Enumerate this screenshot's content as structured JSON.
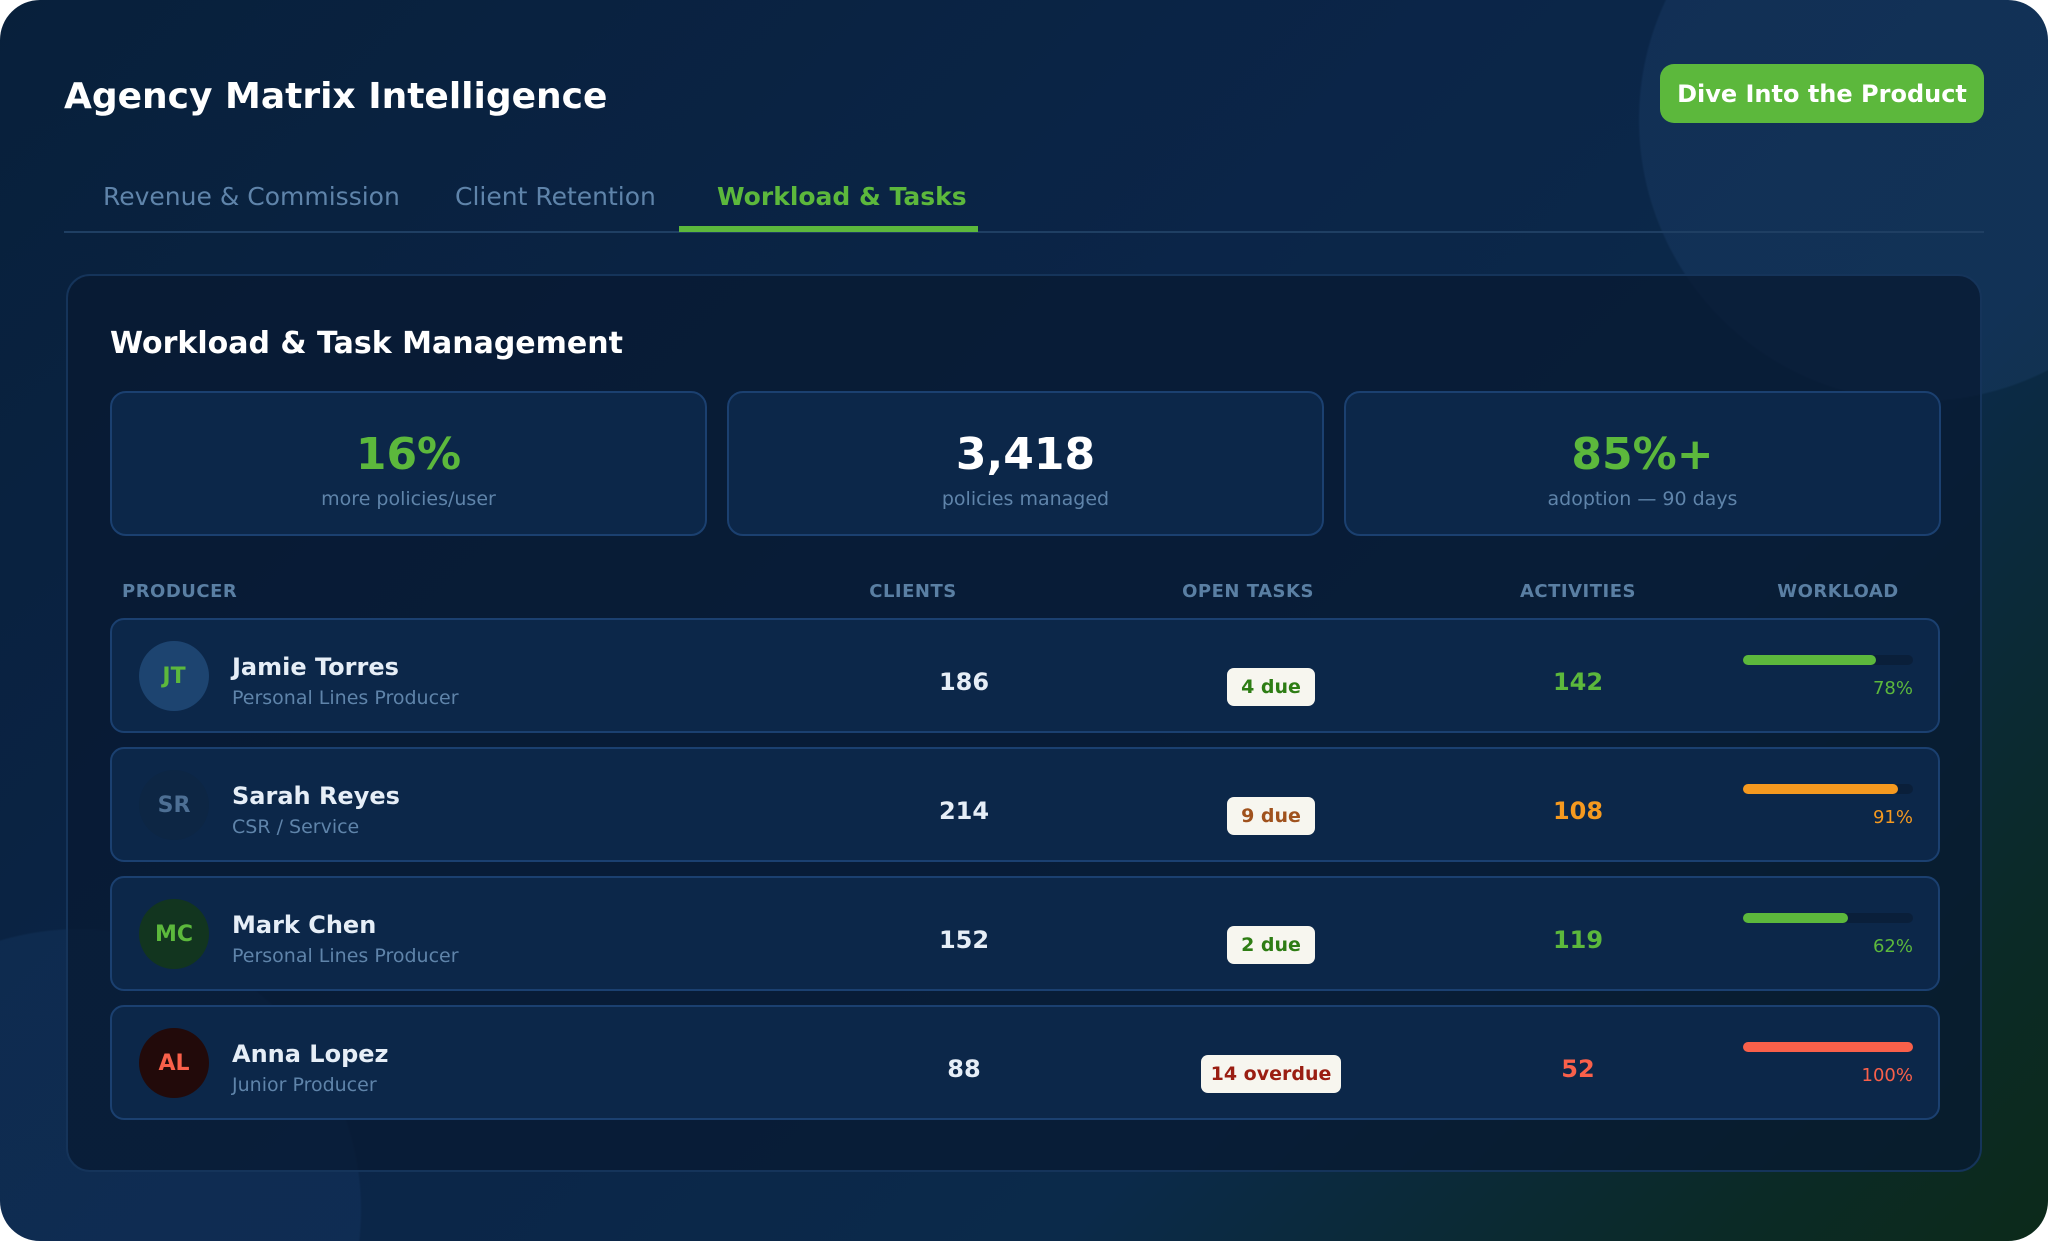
{
  "app": {
    "title": "Agency Matrix Intelligence",
    "cta_label": "Dive Into the Product"
  },
  "tabs": [
    {
      "label": "Revenue & Commission"
    },
    {
      "label": "Client Retention"
    },
    {
      "label": "Workload & Tasks",
      "active": true
    }
  ],
  "panel": {
    "title": "Workload & Task Management",
    "stats": [
      {
        "value": "16%",
        "label": "more policies/user",
        "color": "#5cb83c"
      },
      {
        "value": "3,418",
        "label": "policies managed",
        "color": "#ffffff"
      },
      {
        "value": "85%+",
        "label": "adoption — 90 days",
        "color": "#5cb83c"
      }
    ],
    "columns": [
      "PRODUCER",
      "CLIENTS",
      "OPEN TASKS",
      "ACTIVITIES",
      "WORKLOAD"
    ],
    "rows": [
      {
        "initials": "JT",
        "name": "Jamie Torres",
        "role": "Personal Lines Producer",
        "clients": "186",
        "tasks": "4 due",
        "activities": "142",
        "workload": 78,
        "workload_label": "78%",
        "status_color": "#5cb83c",
        "badge_color": "#2e7d14",
        "avatar_bg": "#1d4470",
        "avatar_fg": "#5cb83c"
      },
      {
        "initials": "SR",
        "name": "Sarah Reyes",
        "role": "CSR / Service",
        "clients": "214",
        "tasks": "9 due",
        "activities": "108",
        "workload": 91,
        "workload_label": "91%",
        "status_color": "#f5991f",
        "badge_color": "#a0521d",
        "avatar_bg": "#0d2644",
        "avatar_fg": "#4d6f94"
      },
      {
        "initials": "MC",
        "name": "Mark Chen",
        "role": "Personal Lines Producer",
        "clients": "152",
        "tasks": "2 due",
        "activities": "119",
        "workload": 62,
        "workload_label": "62%",
        "status_color": "#5cb83c",
        "badge_color": "#2e7d14",
        "avatar_bg": "#12351f",
        "avatar_fg": "#5cb83c"
      },
      {
        "initials": "AL",
        "name": "Anna Lopez",
        "role": "Junior Producer",
        "clients": "88",
        "tasks": "14 overdue",
        "activities": "52",
        "workload": 100,
        "workload_label": "100%",
        "status_color": "#f9604a",
        "badge_color": "#9a1e12",
        "avatar_bg": "#220a0a",
        "avatar_fg": "#f9604a"
      }
    ]
  }
}
